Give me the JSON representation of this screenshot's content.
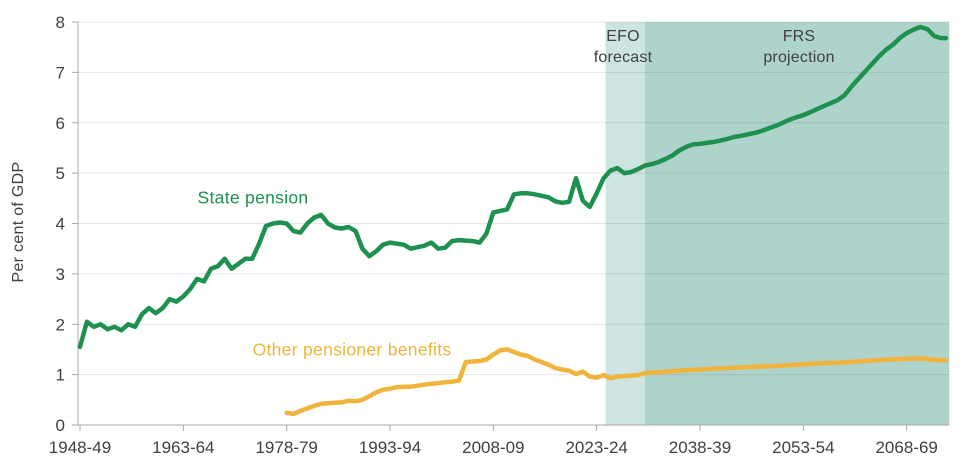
{
  "page": {
    "background": "#ffffff"
  },
  "colors": {
    "state_pension_line": "#1e9150",
    "other_benefits_line": "#f0b43c",
    "efo_band": "#cee4e0",
    "frs_band": "#aed3cb",
    "gridline": "#404040",
    "axis_line": "#a9a9a9",
    "text": "#414042"
  },
  "axes": {
    "ylabel": "Per cent of GDP",
    "y_ticks": [
      0,
      1,
      2,
      3,
      4,
      5,
      6,
      7,
      8
    ],
    "x_tick_labels": [
      "1948-49",
      "1963-64",
      "1978-79",
      "1993-94",
      "2008-09",
      "2023-24",
      "2038-39",
      "2053-54",
      "2068-69"
    ],
    "x_tick_years": [
      1948,
      1963,
      1978,
      1993,
      2008,
      2023,
      2038,
      2053,
      2068
    ]
  },
  "annotations": {
    "state_pension_label": "State pension",
    "other_benefits_label": "Other pensioner benefits",
    "efo_label_line1": "EFO",
    "efo_label_line2": "forecast",
    "frs_label_line1": "FRS",
    "frs_label_line2": "projection"
  },
  "chart_data": {
    "type": "line",
    "title": "",
    "xlabel": "",
    "ylabel": "Per cent of GDP",
    "ylim": [
      0,
      8
    ],
    "xlim": [
      1947.5,
      2074.5
    ],
    "grid": "horizontal",
    "legend_position": "inline-labels",
    "bands": [
      {
        "name": "EFO forecast",
        "from": 2024.3,
        "to": 2030,
        "color": "#cee4e0"
      },
      {
        "name": "FRS projection",
        "from": 2030,
        "to": 2074.2,
        "color": "#aed3cb"
      }
    ],
    "series": [
      {
        "name": "State pension",
        "color": "#1e9150",
        "points": [
          [
            1948,
            1.55
          ],
          [
            1949,
            2.05
          ],
          [
            1950,
            1.95
          ],
          [
            1951,
            2.0
          ],
          [
            1952,
            1.9
          ],
          [
            1953,
            1.95
          ],
          [
            1954,
            1.88
          ],
          [
            1955,
            2.0
          ],
          [
            1956,
            1.95
          ],
          [
            1957,
            2.2
          ],
          [
            1958,
            2.32
          ],
          [
            1959,
            2.22
          ],
          [
            1960,
            2.32
          ],
          [
            1961,
            2.5
          ],
          [
            1962,
            2.45
          ],
          [
            1963,
            2.55
          ],
          [
            1964,
            2.7
          ],
          [
            1965,
            2.9
          ],
          [
            1966,
            2.85
          ],
          [
            1967,
            3.1
          ],
          [
            1968,
            3.15
          ],
          [
            1969,
            3.3
          ],
          [
            1970,
            3.1
          ],
          [
            1971,
            3.2
          ],
          [
            1972,
            3.3
          ],
          [
            1973,
            3.3
          ],
          [
            1974,
            3.6
          ],
          [
            1975,
            3.95
          ],
          [
            1976,
            4.0
          ],
          [
            1977,
            4.02
          ],
          [
            1978,
            4.0
          ],
          [
            1979,
            3.85
          ],
          [
            1980,
            3.82
          ],
          [
            1981,
            4.0
          ],
          [
            1982,
            4.12
          ],
          [
            1983,
            4.17
          ],
          [
            1984,
            4.0
          ],
          [
            1985,
            3.92
          ],
          [
            1986,
            3.9
          ],
          [
            1987,
            3.93
          ],
          [
            1988,
            3.85
          ],
          [
            1989,
            3.5
          ],
          [
            1990,
            3.35
          ],
          [
            1991,
            3.45
          ],
          [
            1992,
            3.58
          ],
          [
            1993,
            3.62
          ],
          [
            1994,
            3.6
          ],
          [
            1995,
            3.58
          ],
          [
            1996,
            3.5
          ],
          [
            1997,
            3.53
          ],
          [
            1998,
            3.56
          ],
          [
            1999,
            3.62
          ],
          [
            2000,
            3.5
          ],
          [
            2001,
            3.52
          ],
          [
            2002,
            3.65
          ],
          [
            2003,
            3.67
          ],
          [
            2004,
            3.66
          ],
          [
            2005,
            3.65
          ],
          [
            2006,
            3.62
          ],
          [
            2007,
            3.8
          ],
          [
            2008,
            4.22
          ],
          [
            2009,
            4.25
          ],
          [
            2010,
            4.28
          ],
          [
            2011,
            4.58
          ],
          [
            2012,
            4.6
          ],
          [
            2013,
            4.6
          ],
          [
            2014,
            4.58
          ],
          [
            2015,
            4.55
          ],
          [
            2016,
            4.52
          ],
          [
            2017,
            4.44
          ],
          [
            2018,
            4.41
          ],
          [
            2019,
            4.43
          ],
          [
            2020,
            4.9
          ],
          [
            2021,
            4.45
          ],
          [
            2022,
            4.33
          ],
          [
            2023,
            4.6
          ],
          [
            2024,
            4.9
          ],
          [
            2025,
            5.05
          ],
          [
            2026,
            5.1
          ],
          [
            2027,
            5.0
          ],
          [
            2028,
            5.02
          ],
          [
            2029,
            5.08
          ],
          [
            2030,
            5.15
          ],
          [
            2031,
            5.18
          ],
          [
            2032,
            5.22
          ],
          [
            2033,
            5.28
          ],
          [
            2034,
            5.35
          ],
          [
            2035,
            5.45
          ],
          [
            2036,
            5.52
          ],
          [
            2037,
            5.57
          ],
          [
            2038,
            5.58
          ],
          [
            2039,
            5.6
          ],
          [
            2040,
            5.62
          ],
          [
            2041,
            5.65
          ],
          [
            2042,
            5.68
          ],
          [
            2043,
            5.72
          ],
          [
            2044,
            5.74
          ],
          [
            2045,
            5.77
          ],
          [
            2046,
            5.8
          ],
          [
            2047,
            5.84
          ],
          [
            2048,
            5.89
          ],
          [
            2049,
            5.94
          ],
          [
            2050,
            6.0
          ],
          [
            2051,
            6.06
          ],
          [
            2052,
            6.11
          ],
          [
            2053,
            6.15
          ],
          [
            2054,
            6.21
          ],
          [
            2055,
            6.27
          ],
          [
            2056,
            6.33
          ],
          [
            2057,
            6.39
          ],
          [
            2058,
            6.45
          ],
          [
            2059,
            6.55
          ],
          [
            2060,
            6.72
          ],
          [
            2061,
            6.87
          ],
          [
            2062,
            7.02
          ],
          [
            2063,
            7.17
          ],
          [
            2064,
            7.32
          ],
          [
            2065,
            7.45
          ],
          [
            2066,
            7.55
          ],
          [
            2067,
            7.68
          ],
          [
            2068,
            7.78
          ],
          [
            2069,
            7.85
          ],
          [
            2070,
            7.9
          ],
          [
            2071,
            7.86
          ],
          [
            2072,
            7.72
          ],
          [
            2073,
            7.68
          ],
          [
            2073.7,
            7.68
          ]
        ]
      },
      {
        "name": "Other pensioner benefits",
        "color": "#f0b43c",
        "points": [
          [
            1978,
            0.24
          ],
          [
            1979,
            0.22
          ],
          [
            1980,
            0.28
          ],
          [
            1981,
            0.33
          ],
          [
            1982,
            0.38
          ],
          [
            1983,
            0.42
          ],
          [
            1984,
            0.43
          ],
          [
            1985,
            0.44
          ],
          [
            1986,
            0.45
          ],
          [
            1987,
            0.48
          ],
          [
            1988,
            0.47
          ],
          [
            1989,
            0.5
          ],
          [
            1990,
            0.57
          ],
          [
            1991,
            0.65
          ],
          [
            1992,
            0.7
          ],
          [
            1993,
            0.72
          ],
          [
            1994,
            0.75
          ],
          [
            1995,
            0.76
          ],
          [
            1996,
            0.76
          ],
          [
            1997,
            0.78
          ],
          [
            1998,
            0.8
          ],
          [
            1999,
            0.82
          ],
          [
            2000,
            0.83
          ],
          [
            2001,
            0.85
          ],
          [
            2002,
            0.86
          ],
          [
            2003,
            0.88
          ],
          [
            2004,
            1.25
          ],
          [
            2005,
            1.26
          ],
          [
            2006,
            1.27
          ],
          [
            2007,
            1.3
          ],
          [
            2008,
            1.4
          ],
          [
            2009,
            1.48
          ],
          [
            2010,
            1.5
          ],
          [
            2011,
            1.45
          ],
          [
            2012,
            1.4
          ],
          [
            2013,
            1.37
          ],
          [
            2014,
            1.3
          ],
          [
            2015,
            1.25
          ],
          [
            2016,
            1.2
          ],
          [
            2017,
            1.13
          ],
          [
            2018,
            1.1
          ],
          [
            2019,
            1.08
          ],
          [
            2020,
            1.01
          ],
          [
            2021,
            1.06
          ],
          [
            2022,
            0.96
          ],
          [
            2023,
            0.94
          ],
          [
            2024,
            0.99
          ],
          [
            2025,
            0.93
          ],
          [
            2026,
            0.96
          ],
          [
            2027,
            0.97
          ],
          [
            2028,
            0.98
          ],
          [
            2029,
            0.99
          ],
          [
            2030,
            1.03
          ],
          [
            2032,
            1.05
          ],
          [
            2035,
            1.08
          ],
          [
            2040,
            1.12
          ],
          [
            2045,
            1.15
          ],
          [
            2050,
            1.18
          ],
          [
            2055,
            1.22
          ],
          [
            2060,
            1.25
          ],
          [
            2063,
            1.28
          ],
          [
            2065,
            1.3
          ],
          [
            2067,
            1.31
          ],
          [
            2069,
            1.32
          ],
          [
            2070,
            1.32
          ],
          [
            2071,
            1.31
          ],
          [
            2072,
            1.29
          ],
          [
            2073.7,
            1.28
          ]
        ]
      }
    ]
  }
}
